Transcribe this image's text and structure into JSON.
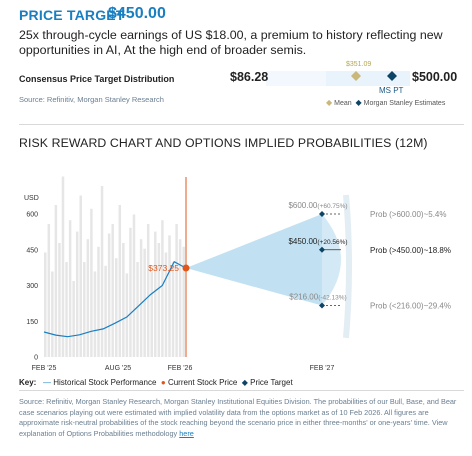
{
  "header": {
    "price_target_label": "PRICE TARGET",
    "price_target_value": "$450.00",
    "thesis": "25x through-cycle earnings of US $18.00, a premium to history reflecting new opportunities in AI, At the high end of broader semis."
  },
  "consensus": {
    "title": "Consensus Price Target Distribution",
    "low": "$86.28",
    "high": "$500.00",
    "mean_label": "$351.09",
    "ms_label": "MS PT",
    "legend_mean": "Mean",
    "legend_ms": "Morgan Stanley Estimates",
    "source": "Source: Refinitiv, Morgan Stanley Research",
    "colors": {
      "mean": "#c9b87a",
      "ms": "#0d4466",
      "bar": "#e8f3fb"
    }
  },
  "risk_reward": {
    "title": "RISK REWARD CHART AND OPTIONS IMPLIED PROBABILITIES (12M)"
  },
  "chart_data": {
    "type": "line",
    "ylabel": "USD",
    "ylim": [
      0,
      675
    ],
    "yticks": [
      0,
      150,
      300,
      450,
      600
    ],
    "xticks": [
      "FEB '25",
      "AUG '25",
      "FEB '26",
      "FEB '27"
    ],
    "grid": false,
    "series": [
      {
        "name": "Historical Stock Performance",
        "x": [
          "FEB '25",
          "MAR '25",
          "APR '25",
          "MAY '25",
          "JUN '25",
          "JUL '25",
          "AUG '25",
          "SEP '25",
          "OCT '25",
          "NOV '25",
          "DEC '25",
          "JAN '26",
          "FEB '26"
        ],
        "values": [
          105,
          92,
          85,
          93,
          108,
          118,
          142,
          168,
          215,
          262,
          300,
          400,
          373.25
        ],
        "color": "#1a7fc1"
      }
    ],
    "current_price": {
      "label": "$373.25",
      "value": 373.25,
      "color": "#e0561b"
    },
    "scenarios": [
      {
        "price_label": "$600.00",
        "pct_label": "(+60.75%)",
        "value": 600,
        "prob_label": "Prob (>600.00)~5.4%"
      },
      {
        "price_label": "$450.00",
        "pct_label": "(+20.56%)",
        "value": 450,
        "prob_label": "Prob (>450.00)~18.8%"
      },
      {
        "price_label": "$216.00",
        "pct_label": "(-42.13%)",
        "value": 216,
        "prob_label": "Prob (<216.00)~29.4%"
      }
    ],
    "colors": {
      "cone": "#b6dcf0",
      "volume": "#e6e6e6",
      "divider": "#e0561b"
    }
  },
  "key": {
    "label": "Key:",
    "historical": "Historical Stock Performance",
    "current": "Current Stock Price",
    "target": "Price Target"
  },
  "footer": {
    "text": "Source: Refinitiv, Morgan Stanley Research, Morgan Stanley Institutional Equities Division. The probabilities of our Bull, Base, and Bear case scenarios playing out were estimated with implied volatility data from the options market as of 10 Feb 2026. All figures are approximate risk-neutral probabilities of the stock reaching beyond the scenario price in either three-months' or one-years' time. View explanation of Options Probabilities methodology",
    "link": "here"
  }
}
